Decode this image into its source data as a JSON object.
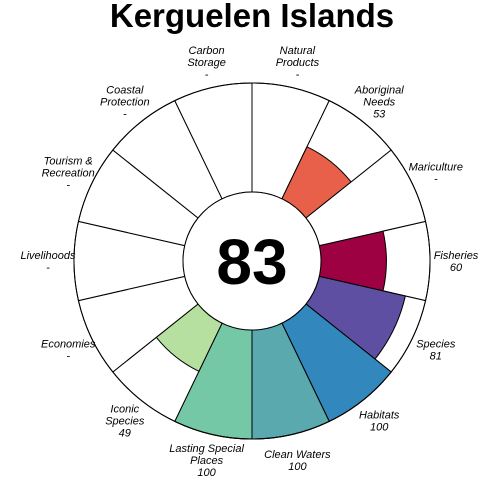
{
  "chart_data": {
    "type": "flower",
    "title": "Kerguelen Islands",
    "center_score": "83",
    "ylim": [
      0,
      100
    ],
    "petals": [
      {
        "label": "Fisheries",
        "value_label": "60",
        "value": 60,
        "color": "#9e0142"
      },
      {
        "label": "Species",
        "value_label": "81",
        "value": 81,
        "color": "#5e4fa2"
      },
      {
        "label": "Habitats",
        "value_label": "100",
        "value": 100,
        "color": "#3288bd"
      },
      {
        "label": "Clean Waters",
        "value_label": "100",
        "value": 100,
        "color": "#5aa9ae"
      },
      {
        "label": "Lasting Special Places",
        "value_label": "100",
        "value": 100,
        "color": "#74c8a6"
      },
      {
        "label": "Iconic Species",
        "value_label": "49",
        "value": 49,
        "color": "#b6e0a0"
      },
      {
        "label": "Economies",
        "value_label": "-",
        "value": null,
        "color": "#ffffff"
      },
      {
        "label": "Livelihoods",
        "value_label": "-",
        "value": null,
        "color": "#ffffff"
      },
      {
        "label": "Tourism & Recreation",
        "value_label": "-",
        "value": null,
        "color": "#ffffff"
      },
      {
        "label": "Coastal Protection",
        "value_label": "-",
        "value": null,
        "color": "#ffffff"
      },
      {
        "label": "Carbon Storage",
        "value_label": "-",
        "value": null,
        "color": "#ffffff"
      },
      {
        "label": "Natural Products",
        "value_label": "-",
        "value": null,
        "color": "#ffffff"
      },
      {
        "label": "Aboriginal Needs",
        "value_label": "53",
        "value": 53,
        "color": "#e8604a"
      },
      {
        "label": "Mariculture",
        "value_label": "-",
        "value": null,
        "color": "#ffffff"
      }
    ]
  }
}
